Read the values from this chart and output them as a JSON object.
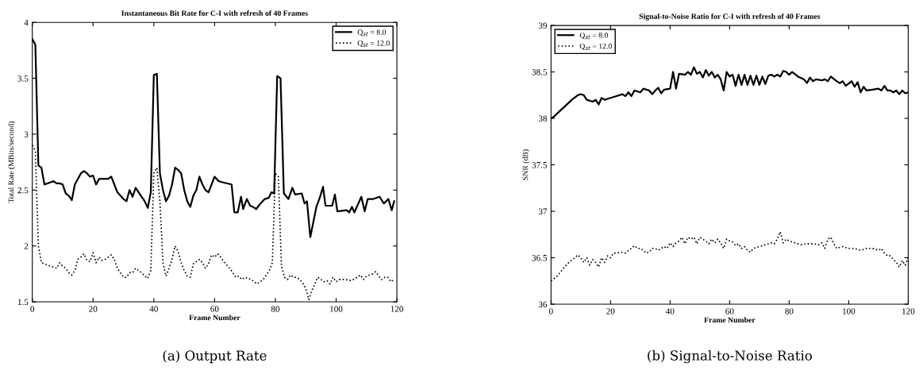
{
  "chart_data": [
    {
      "type": "line",
      "title": "Instantaneous Bit Rate for C-I with refresh of 40 Frames",
      "xlabel": "Frame Number",
      "ylabel": "Total Rate (MBits/second)",
      "xlim": [
        0,
        120
      ],
      "ylim": [
        1.5,
        4
      ],
      "xticks": [
        0,
        20,
        40,
        60,
        80,
        100,
        120
      ],
      "yticks": [
        1.5,
        2,
        2.5,
        3,
        3.5,
        4
      ],
      "legend": "top right",
      "grid": false,
      "annotations": [
        "(a) Output Rate"
      ],
      "series": [
        {
          "name": "Q$_{st}$ = 8.0",
          "color": "#000000",
          "line_style": "solid",
          "x": [
            0,
            1,
            2,
            3,
            4,
            5,
            6,
            7,
            8,
            9,
            10,
            11,
            12,
            13,
            14,
            15,
            16,
            17,
            18,
            19,
            20,
            21,
            22,
            23,
            24,
            25,
            26,
            27,
            28,
            29,
            30,
            31,
            32,
            33,
            34,
            35,
            36,
            37,
            38,
            39,
            40,
            41,
            42,
            43,
            44,
            45,
            46,
            47,
            48,
            49,
            50,
            51,
            52,
            53,
            54,
            55,
            56,
            57,
            58,
            59,
            60,
            61.3,
            62.6,
            65.6,
            66.5,
            67.6,
            68.7,
            69.4,
            70.6,
            71.7,
            72.6,
            73.7,
            74.8,
            76.5,
            77.8,
            78.7,
            79.6,
            80.6,
            81.7,
            82.8,
            84.3,
            85.6,
            86.5,
            88.7,
            89.6,
            90.4,
            91.5,
            93.5,
            94.6,
            95.7,
            96.5,
            98.7,
            99.6,
            100.4,
            103.5,
            104.3,
            105.2,
            106,
            108.3,
            109.4,
            110.4,
            112.2,
            114.3,
            115.7,
            117.2,
            118.3,
            119.1
          ],
          "values": [
            3.85,
            3.8,
            2.72,
            2.7,
            2.55,
            2.56,
            2.57,
            2.58,
            2.56,
            2.56,
            2.55,
            2.47,
            2.45,
            2.41,
            2.55,
            2.6,
            2.65,
            2.67,
            2.65,
            2.62,
            2.63,
            2.55,
            2.6,
            2.6,
            2.6,
            2.6,
            2.62,
            2.55,
            2.48,
            2.45,
            2.42,
            2.4,
            2.5,
            2.44,
            2.52,
            2.48,
            2.44,
            2.4,
            2.34,
            2.48,
            3.53,
            3.54,
            2.65,
            2.5,
            2.4,
            2.45,
            2.55,
            2.7,
            2.68,
            2.65,
            2.5,
            2.4,
            2.35,
            2.45,
            2.5,
            2.62,
            2.55,
            2.5,
            2.48,
            2.55,
            2.62,
            2.58,
            2.57,
            2.55,
            2.3,
            2.3,
            2.44,
            2.33,
            2.42,
            2.36,
            2.35,
            2.33,
            2.37,
            2.42,
            2.43,
            2.48,
            2.47,
            3.52,
            3.5,
            2.47,
            2.42,
            2.52,
            2.46,
            2.47,
            2.38,
            2.4,
            2.08,
            2.35,
            2.43,
            2.53,
            2.36,
            2.36,
            2.46,
            2.31,
            2.32,
            2.3,
            2.35,
            2.3,
            2.44,
            2.31,
            2.42,
            2.42,
            2.44,
            2.38,
            2.42,
            2.32,
            2.4
          ]
        },
        {
          "name": "Q$_{st}$ = 12.0",
          "color": "#000000",
          "line_style": "dotted",
          "x": [
            0,
            1,
            2,
            3,
            4,
            5,
            6,
            7,
            8,
            9,
            10,
            11,
            12,
            13,
            14,
            15,
            16,
            17,
            18,
            19,
            20,
            21,
            22,
            23,
            24,
            25,
            26,
            27,
            28,
            29,
            30,
            31,
            32,
            33,
            34,
            35,
            36,
            37,
            38,
            39,
            40,
            41,
            42,
            43,
            44,
            45,
            46,
            47,
            48,
            49,
            50,
            51,
            52,
            53,
            54,
            55,
            56,
            57,
            58,
            59,
            60,
            61,
            62,
            63,
            65,
            67,
            68,
            69,
            70,
            72,
            74,
            76,
            78,
            79,
            80,
            81,
            82,
            83,
            84,
            85,
            86,
            87,
            88,
            89,
            90,
            91,
            92,
            93,
            94,
            95,
            96,
            97,
            98,
            99,
            100,
            101,
            103,
            105,
            107,
            108,
            109,
            110,
            111,
            112,
            113,
            114,
            115,
            116,
            117,
            118,
            119
          ],
          "values": [
            2.9,
            2.85,
            2.0,
            1.85,
            1.84,
            1.83,
            1.82,
            1.81,
            1.8,
            1.85,
            1.82,
            1.8,
            1.76,
            1.74,
            1.78,
            1.88,
            1.9,
            1.93,
            1.87,
            1.86,
            1.94,
            1.85,
            1.9,
            1.87,
            1.88,
            1.9,
            1.92,
            1.88,
            1.8,
            1.76,
            1.72,
            1.72,
            1.76,
            1.76,
            1.8,
            1.78,
            1.76,
            1.73,
            1.71,
            1.78,
            2.65,
            2.7,
            2.4,
            1.85,
            1.73,
            1.8,
            1.88,
            2.0,
            1.95,
            1.85,
            1.78,
            1.73,
            1.72,
            1.84,
            1.86,
            1.88,
            1.85,
            1.8,
            1.84,
            1.92,
            1.9,
            1.93,
            1.9,
            1.86,
            1.8,
            1.72,
            1.73,
            1.7,
            1.72,
            1.7,
            1.66,
            1.7,
            1.78,
            1.85,
            2.65,
            2.62,
            1.82,
            1.72,
            1.7,
            1.74,
            1.72,
            1.72,
            1.7,
            1.67,
            1.62,
            1.52,
            1.6,
            1.66,
            1.72,
            1.7,
            1.68,
            1.69,
            1.66,
            1.72,
            1.68,
            1.7,
            1.7,
            1.69,
            1.72,
            1.74,
            1.7,
            1.73,
            1.74,
            1.75,
            1.77,
            1.73,
            1.7,
            1.72,
            1.72,
            1.68,
            1.7
          ]
        }
      ]
    },
    {
      "type": "line",
      "title": "Signal-to-Noise Ratio for C-I with refresh of 40 Frames",
      "xlabel": "Frame Number",
      "ylabel": "SNR (dB)",
      "xlim": [
        0,
        120
      ],
      "ylim": [
        36,
        39
      ],
      "xticks": [
        0,
        20,
        40,
        60,
        80,
        100,
        120
      ],
      "yticks": [
        36,
        36.5,
        37,
        37.5,
        38,
        38.5,
        39
      ],
      "legend": "top left",
      "grid": false,
      "annotations": [
        "(b) Signal-to-Noise Ratio"
      ],
      "series": [
        {
          "name": "Q$_{st}$ = 8.0",
          "color": "#000000",
          "line_style": "solid",
          "x": [
            0,
            1,
            3,
            5,
            7,
            9,
            10,
            11,
            12,
            14,
            15,
            16,
            17,
            18,
            20,
            22,
            24,
            25,
            26,
            27,
            28,
            30,
            31,
            33,
            34,
            35,
            36,
            37,
            38,
            40,
            41,
            42,
            43,
            45,
            46,
            47,
            48,
            49,
            50,
            51,
            52,
            53,
            54,
            55,
            56,
            57,
            58,
            59,
            60,
            61,
            62,
            63,
            64,
            65,
            66,
            67,
            68,
            69,
            70,
            71,
            72,
            73,
            74,
            75,
            76,
            77,
            78,
            79,
            80,
            81,
            83,
            85,
            86,
            87,
            88,
            89,
            91,
            92,
            93,
            94,
            96,
            97,
            98,
            99,
            101,
            102,
            103,
            104,
            105,
            106,
            108,
            110,
            111,
            112,
            113,
            114,
            115,
            116,
            117,
            118,
            119,
            120
          ],
          "values": [
            38.0,
            38.02,
            38.08,
            38.14,
            38.2,
            38.25,
            38.26,
            38.25,
            38.2,
            38.18,
            38.2,
            38.15,
            38.22,
            38.2,
            38.22,
            38.24,
            38.26,
            38.24,
            38.28,
            38.24,
            38.3,
            38.28,
            38.32,
            38.3,
            38.26,
            38.3,
            38.33,
            38.27,
            38.31,
            38.32,
            38.5,
            38.32,
            38.48,
            38.47,
            38.5,
            38.47,
            38.55,
            38.48,
            38.5,
            38.44,
            38.52,
            38.46,
            38.5,
            38.44,
            38.47,
            38.42,
            38.3,
            38.5,
            38.45,
            38.47,
            38.35,
            38.47,
            38.36,
            38.47,
            38.36,
            38.46,
            38.36,
            38.46,
            38.36,
            38.45,
            38.37,
            38.46,
            38.47,
            38.45,
            38.47,
            38.45,
            38.51,
            38.5,
            38.47,
            38.5,
            38.45,
            38.42,
            38.38,
            38.44,
            38.4,
            38.42,
            38.41,
            38.42,
            38.4,
            38.45,
            38.4,
            38.38,
            38.4,
            38.35,
            38.4,
            38.34,
            38.39,
            38.28,
            38.34,
            38.3,
            38.31,
            38.32,
            38.3,
            38.35,
            38.3,
            38.3,
            38.28,
            38.3,
            38.26,
            38.3,
            38.27,
            38.28
          ]
        },
        {
          "name": "Q$_{st}$ = 12.0",
          "color": "#000000",
          "line_style": "dotted",
          "x": [
            0,
            2,
            4,
            6,
            8,
            9,
            10,
            11,
            12,
            13,
            14,
            15,
            16,
            17,
            18,
            19,
            20,
            21,
            22,
            24,
            25,
            26,
            27,
            28,
            29,
            30,
            31,
            32,
            33,
            34,
            35,
            36,
            37,
            38,
            39,
            40,
            41,
            42,
            43,
            44,
            45,
            46,
            47,
            48,
            49,
            50,
            51,
            52,
            53,
            54,
            55,
            56,
            57,
            58,
            59,
            60,
            61,
            62,
            63,
            64,
            65,
            66,
            67,
            68,
            70,
            72,
            74,
            75,
            76,
            77,
            78,
            79,
            80,
            82,
            84,
            86,
            88,
            90,
            91,
            92,
            93,
            94,
            95,
            96,
            98,
            100,
            102,
            104,
            106,
            108,
            110,
            111,
            112,
            113,
            114,
            115,
            116,
            117,
            118,
            119,
            120
          ],
          "values": [
            36.25,
            36.3,
            36.38,
            36.45,
            36.5,
            36.53,
            36.5,
            36.45,
            36.5,
            36.42,
            36.48,
            36.45,
            36.4,
            36.5,
            36.45,
            36.52,
            36.5,
            36.55,
            36.55,
            36.56,
            36.55,
            36.58,
            36.6,
            36.63,
            36.6,
            36.6,
            36.58,
            36.55,
            36.56,
            36.6,
            36.6,
            36.58,
            36.6,
            36.62,
            36.6,
            36.66,
            36.62,
            36.66,
            36.68,
            36.72,
            36.65,
            36.72,
            36.7,
            36.72,
            36.65,
            36.72,
            36.7,
            36.68,
            36.65,
            36.7,
            36.66,
            36.7,
            36.66,
            36.6,
            36.7,
            36.68,
            36.67,
            36.63,
            36.65,
            36.6,
            36.62,
            36.58,
            36.56,
            36.6,
            36.62,
            36.64,
            36.66,
            36.65,
            36.7,
            36.78,
            36.66,
            36.7,
            36.68,
            36.66,
            36.64,
            36.65,
            36.65,
            36.64,
            36.66,
            36.6,
            36.7,
            36.72,
            36.65,
            36.6,
            36.62,
            36.6,
            36.6,
            36.58,
            36.6,
            36.6,
            36.58,
            36.6,
            36.55,
            36.52,
            36.52,
            36.48,
            36.45,
            36.4,
            36.47,
            36.42,
            36.5
          ]
        }
      ]
    }
  ]
}
